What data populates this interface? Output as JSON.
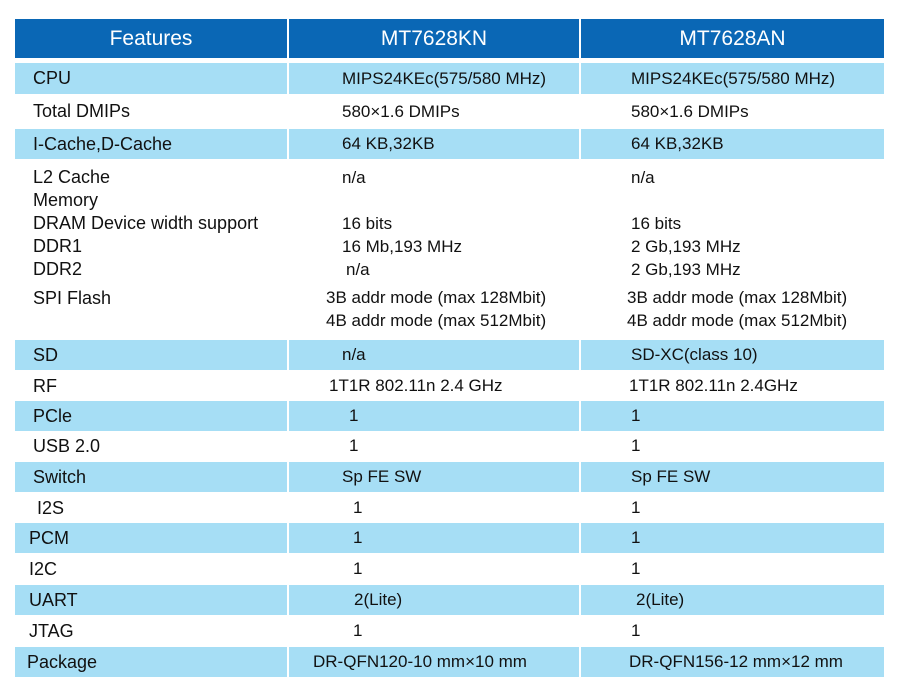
{
  "header": {
    "features": "Features",
    "col_kn": "MT7628KN",
    "col_an": "MT7628AN"
  },
  "rows": [
    {
      "feature": "CPU",
      "kn": "MIPS24KEc(575/580 MHz)",
      "an": "MIPS24KEc(575/580 MHz)"
    },
    {
      "feature": "Total DMIPs",
      "kn": "580×1.6 DMIPs",
      "an": "580×1.6 DMIPs"
    },
    {
      "feature": "I-Cache,D-Cache",
      "kn": "64 KB,32KB",
      "an": "64 KB,32KB"
    },
    {
      "feature": "L2 Cache",
      "kn": "n/a",
      "an": "n/a"
    },
    {
      "feature": "Memory",
      "kn": "",
      "an": ""
    },
    {
      "feature": "DRAM Device width support",
      "kn": "16 bits",
      "an": "16 bits"
    },
    {
      "feature": "DDR1",
      "kn": "16 Mb,193 MHz",
      "an": "2 Gb,193 MHz"
    },
    {
      "feature": "DDR2",
      "kn": "n/a",
      "an": "2 Gb,193 MHz"
    },
    {
      "feature": "SPI Flash",
      "kn": "3B addr mode (max 128Mbit)",
      "an": "3B addr mode (max 128Mbit)"
    },
    {
      "feature": "",
      "kn": "4B addr mode (max 512Mbit)",
      "an": "4B addr mode (max 512Mbit)"
    },
    {
      "feature": "SD",
      "kn": "n/a",
      "an": "SD-XC(class 10)"
    },
    {
      "feature": "RF",
      "kn": "1T1R 802.11n 2.4 GHz",
      "an": "1T1R 802.11n 2.4GHz"
    },
    {
      "feature": "PCle",
      "kn": "1",
      "an": "1"
    },
    {
      "feature": "USB 2.0",
      "kn": "1",
      "an": "1"
    },
    {
      "feature": "Switch",
      "kn": "Sp FE SW",
      "an": "Sp FE SW"
    },
    {
      "feature": "I2S",
      "kn": "1",
      "an": "1"
    },
    {
      "feature": "PCM",
      "kn": "1",
      "an": "1"
    },
    {
      "feature": "I2C",
      "kn": "1",
      "an": "1"
    },
    {
      "feature": "UART",
      "kn": "2(Lite)",
      "an": "2(Lite)"
    },
    {
      "feature": "JTAG",
      "kn": "1",
      "an": "1"
    },
    {
      "feature": "Package",
      "kn": "DR-QFN120-10 mm×10 mm",
      "an": "DR-QFN156-12 mm×12 mm"
    }
  ]
}
